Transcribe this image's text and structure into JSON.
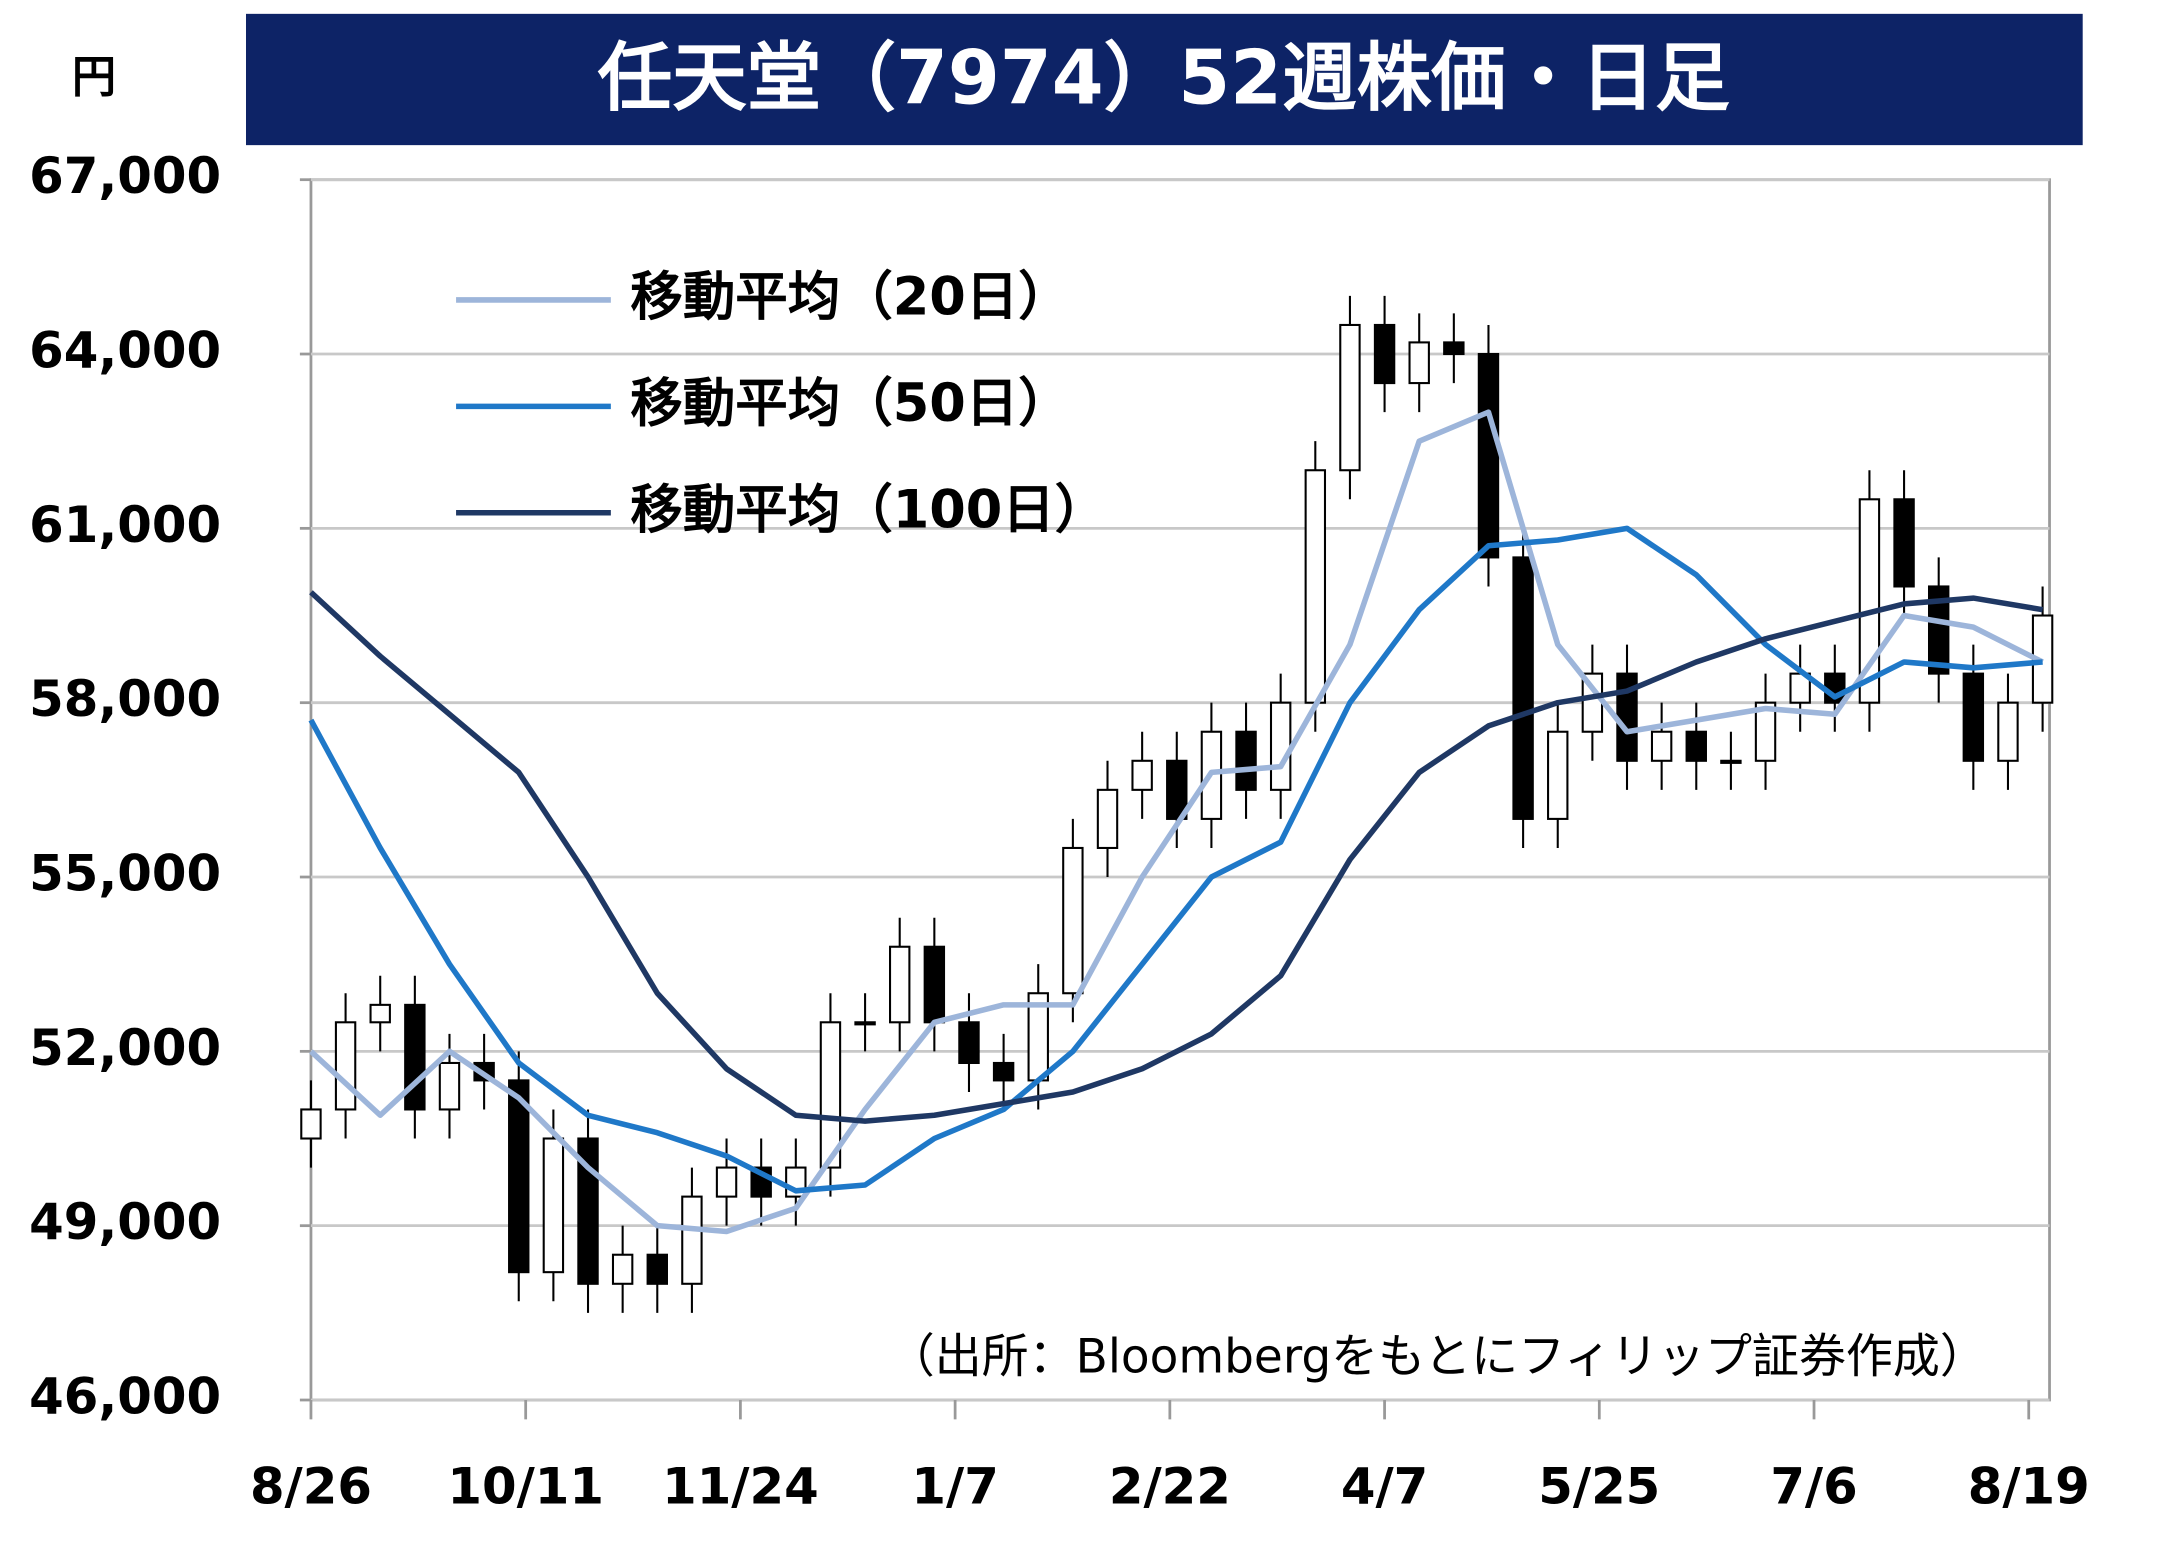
{
  "chart_data": {
    "type": "candlestick",
    "title": "任天堂（7974）52週株価・日足",
    "y_label": "円",
    "source": "（出所：Bloombergをもとにフィリップ証券作成）",
    "xlim": [
      0,
      251
    ],
    "xticks": [
      {
        "value": 0,
        "label": "8/26"
      },
      {
        "value": 31,
        "label": "10/11"
      },
      {
        "value": 62,
        "label": "11/24"
      },
      {
        "value": 93,
        "label": "1/7"
      },
      {
        "value": 124,
        "label": "2/22"
      },
      {
        "value": 155,
        "label": "4/7"
      },
      {
        "value": 186,
        "label": "5/25"
      },
      {
        "value": 217,
        "label": "7/6"
      },
      {
        "value": 248,
        "label": "8/19"
      }
    ],
    "ylim": [
      46000,
      67000
    ],
    "yticks": [
      {
        "value": 46000,
        "label": "46,000"
      },
      {
        "value": 49000,
        "label": "49,000"
      },
      {
        "value": 52000,
        "label": "52,000"
      },
      {
        "value": 55000,
        "label": "55,000"
      },
      {
        "value": 58000,
        "label": "58,000"
      },
      {
        "value": 61000,
        "label": "61,000"
      },
      {
        "value": 64000,
        "label": "64,000"
      },
      {
        "value": 67000,
        "label": "67,000"
      }
    ],
    "grid": true,
    "legend": "upper left",
    "candles": {
      "x": [
        0,
        5,
        10,
        15,
        20,
        25,
        30,
        35,
        40,
        45,
        50,
        55,
        60,
        65,
        70,
        75,
        80,
        85,
        90,
        95,
        100,
        105,
        110,
        115,
        120,
        125,
        130,
        135,
        140,
        145,
        150,
        155,
        160,
        165,
        170,
        175,
        180,
        185,
        190,
        195,
        200,
        205,
        210,
        215,
        220,
        225,
        230,
        235,
        240,
        245,
        250
      ],
      "open": [
        50500,
        51000,
        52500,
        52800,
        51000,
        51800,
        51500,
        48200,
        50500,
        48000,
        48500,
        48000,
        49500,
        50000,
        49500,
        50000,
        52500,
        52500,
        53800,
        52500,
        51800,
        51500,
        53000,
        55500,
        56500,
        57000,
        56000,
        57500,
        56500,
        58000,
        62000,
        64500,
        63500,
        64200,
        64000,
        60500,
        56000,
        57500,
        58500,
        57000,
        57500,
        57000,
        57000,
        58000,
        58500,
        58000,
        61500,
        60000,
        58500,
        57000,
        58000
      ],
      "high": [
        51500,
        53000,
        53300,
        53300,
        52300,
        52300,
        52000,
        51000,
        51000,
        49000,
        49000,
        50000,
        50500,
        50500,
        50500,
        53000,
        53000,
        54300,
        54300,
        53000,
        52300,
        53500,
        56000,
        57000,
        57500,
        57500,
        58000,
        58000,
        58500,
        62500,
        65000,
        65000,
        64700,
        64700,
        64500,
        61000,
        58000,
        59000,
        59000,
        58000,
        58000,
        57500,
        58500,
        59000,
        59000,
        62000,
        62000,
        60500,
        59000,
        58500,
        60000
      ],
      "low": [
        50000,
        50500,
        52000,
        50500,
        50500,
        51000,
        47700,
        47700,
        47500,
        47500,
        47500,
        47500,
        49000,
        49000,
        49000,
        49500,
        52000,
        52000,
        52000,
        51300,
        51000,
        51000,
        52500,
        55000,
        56000,
        55500,
        55500,
        56000,
        56000,
        57500,
        61500,
        63000,
        63000,
        63500,
        60000,
        55500,
        55500,
        57000,
        56500,
        56500,
        56500,
        56500,
        56500,
        57500,
        57500,
        57500,
        59500,
        58000,
        56500,
        56500,
        57500
      ],
      "close": [
        51000,
        52500,
        52800,
        51000,
        51800,
        51500,
        48200,
        50500,
        48000,
        48500,
        48000,
        49500,
        50000,
        49500,
        50000,
        52500,
        52500,
        53800,
        52500,
        51800,
        51500,
        53000,
        55500,
        56500,
        57000,
        56000,
        57500,
        56500,
        58000,
        62000,
        64500,
        63500,
        64200,
        64000,
        60500,
        56000,
        57500,
        58500,
        57000,
        57500,
        57000,
        57000,
        58000,
        58500,
        58000,
        61500,
        60000,
        58500,
        57000,
        58000,
        59500
      ]
    },
    "x": [
      0,
      10,
      20,
      30,
      40,
      50,
      60,
      70,
      80,
      90,
      100,
      110,
      120,
      130,
      140,
      150,
      160,
      170,
      180,
      190,
      200,
      210,
      220,
      230,
      240,
      250
    ],
    "series": [
      {
        "name": "移動平均（20日）",
        "color": "#9db5da",
        "values": [
          52000,
          50900,
          52000,
          51200,
          50000,
          49000,
          48900,
          49300,
          51000,
          52500,
          52800,
          52800,
          55000,
          56800,
          56900,
          59000,
          62500,
          63000,
          59000,
          57500,
          57700,
          57900,
          57800,
          59500,
          59300,
          58700
        ]
      },
      {
        "name": "移動平均（50日）",
        "color": "#1f78c8",
        "values": [
          57700,
          55500,
          53500,
          51800,
          50900,
          50600,
          50200,
          49600,
          49700,
          50500,
          51000,
          52000,
          53500,
          55000,
          55600,
          58000,
          59600,
          60700,
          60800,
          61000,
          60200,
          59000,
          58100,
          58700,
          58600,
          58700
        ]
      },
      {
        "name": "移動平均（100日）",
        "color": "#1f3864",
        "values": [
          59900,
          58800,
          57800,
          56800,
          55000,
          53000,
          51700,
          50900,
          50800,
          50900,
          51100,
          51300,
          51700,
          52300,
          53300,
          55300,
          56800,
          57600,
          58000,
          58200,
          58700,
          59100,
          59400,
          59700,
          59800,
          59600
        ]
      }
    ]
  }
}
